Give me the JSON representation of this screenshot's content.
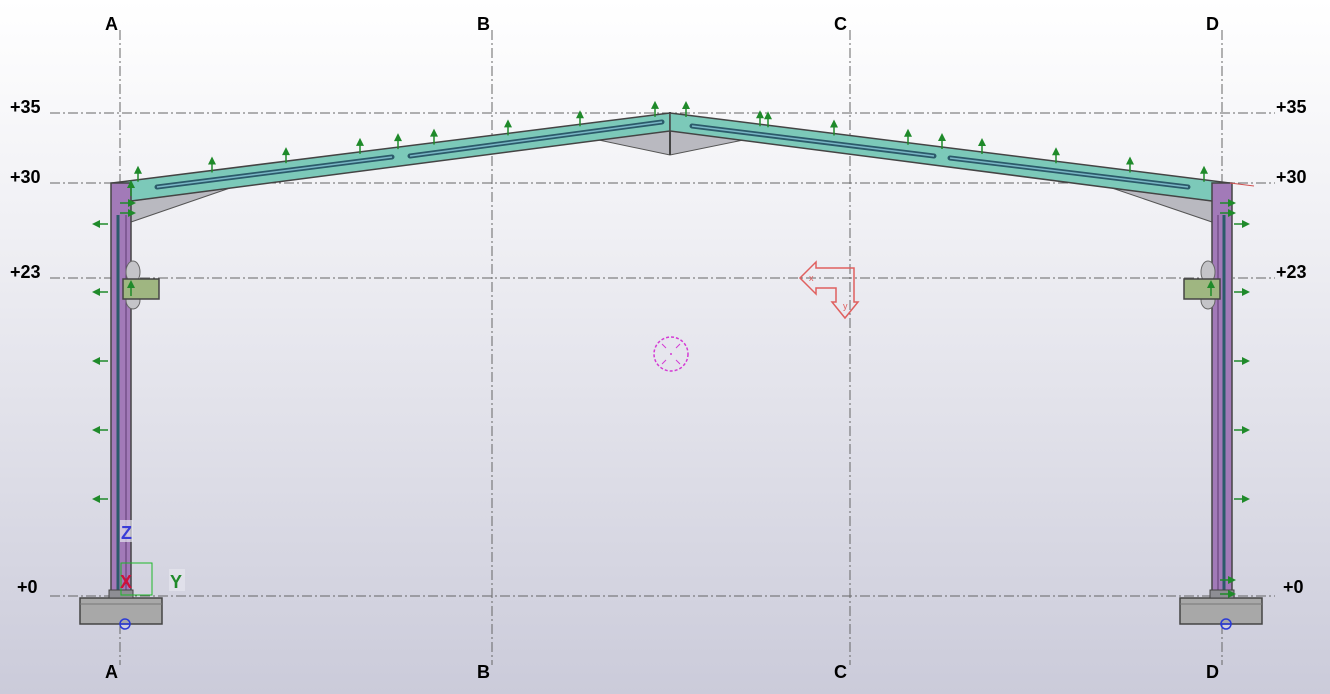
{
  "grid_lines": [
    {
      "label": "A"
    },
    {
      "label": "B"
    },
    {
      "label": "C"
    },
    {
      "label": "D"
    }
  ],
  "levels": [
    {
      "label": "+35"
    },
    {
      "label": "+30"
    },
    {
      "label": "+23"
    },
    {
      "label": "+0"
    }
  ],
  "axes": {
    "x": "X",
    "y": "Y",
    "z": "Z"
  },
  "colors": {
    "rafter": "#7cc9b9",
    "column": "#a27ab8",
    "haunch": "#b9b9c0",
    "bracket": "#9fb681",
    "footing": "#a8a8a8",
    "load_arrow": "#1f8a2a",
    "view_marker": "#e0605f",
    "work_point": "#d43bd4"
  }
}
